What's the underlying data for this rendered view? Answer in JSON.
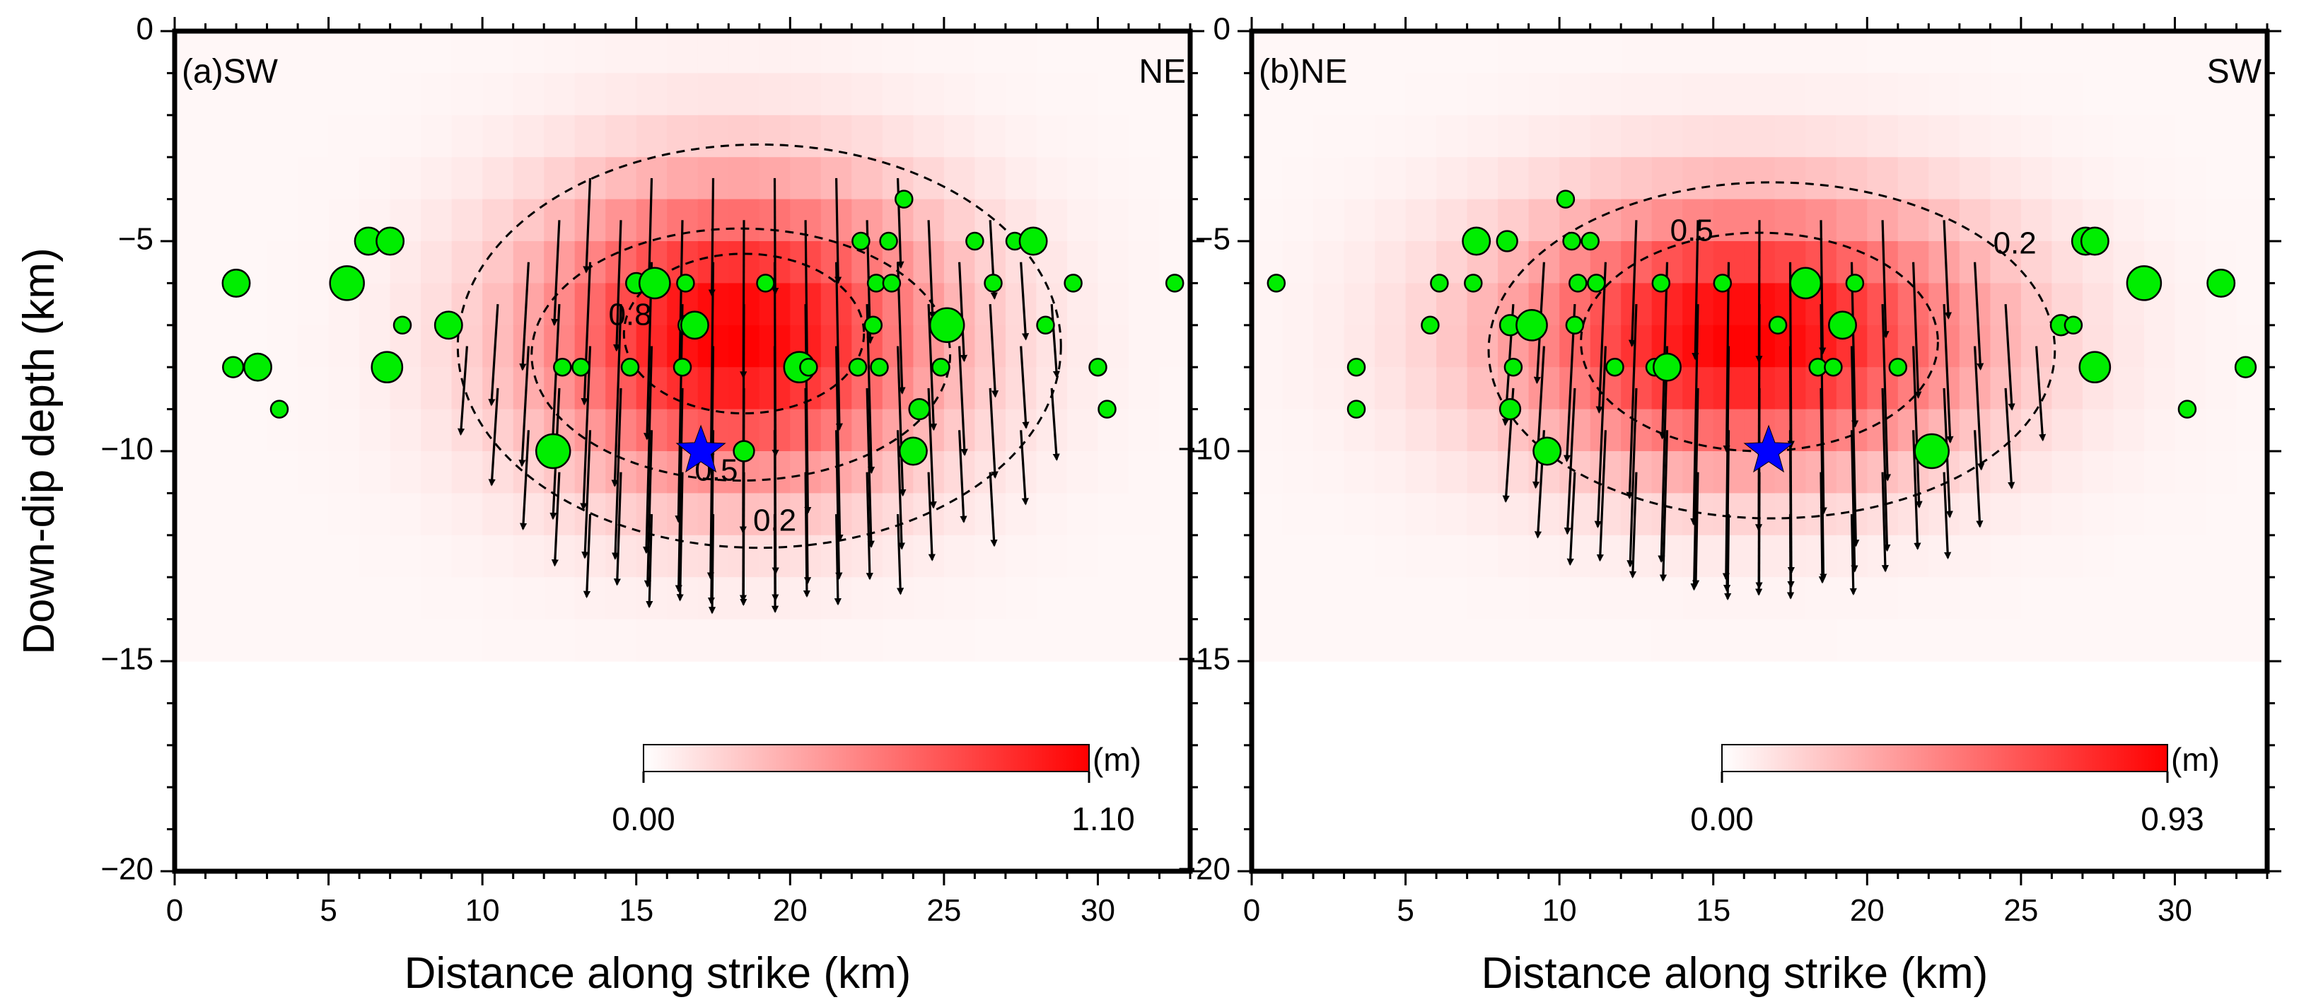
{
  "figure": {
    "ylabel": "Down-dip depth (km)",
    "y_tick_labels": [
      "0",
      "−5",
      "−10",
      "−15",
      "−20"
    ],
    "x_tick_labels": [
      "0",
      "5",
      "10",
      "15",
      "20",
      "25",
      "30"
    ],
    "colors": {
      "slip_max": "#ff0000",
      "slip_min": "#ffffff",
      "event": "#00ee00",
      "hypocenter": "#0000ff"
    }
  },
  "chart_data": [
    {
      "type": "heatmap",
      "panel_label": "(a)SW",
      "right_label": "NE",
      "xlabel": "Distance along strike (km)",
      "ylabel": "Down-dip depth (km)",
      "xlim": [
        0,
        33
      ],
      "ylim": [
        -20,
        0
      ],
      "x_ticks": [
        0,
        5,
        10,
        15,
        20,
        25,
        30
      ],
      "y_ticks": [
        0,
        -5,
        -10,
        -15,
        -20
      ],
      "slip_peak_m": 1.1,
      "slip_center_km": [
        18.2,
        -7.2
      ],
      "slip_spread_km": [
        4.6,
        2.5
      ],
      "colorbar": {
        "unit": "(m)",
        "min_label": "0.00",
        "max_label": "1.10",
        "min": 0.0,
        "max": 1.1
      },
      "contours": [
        {
          "label": "0.2",
          "center": [
            19.0,
            -7.5
          ],
          "radii": [
            9.8,
            4.8
          ],
          "label_pos": [
            19.5,
            -11.7
          ]
        },
        {
          "label": "0.5",
          "center": [
            18.4,
            -7.7
          ],
          "radii": [
            6.8,
            3.0
          ],
          "label_pos": [
            17.6,
            -10.5
          ]
        },
        {
          "label": "0.8",
          "center": [
            18.5,
            -7.2
          ],
          "radii": [
            3.9,
            1.9
          ],
          "label_pos": [
            14.8,
            -6.8
          ]
        }
      ],
      "hypocenter": [
        17.1,
        -10.0
      ],
      "events": [
        [
          2.0,
          -6.0,
          1.6
        ],
        [
          1.9,
          -8.0,
          1.2
        ],
        [
          2.7,
          -8.0,
          1.6
        ],
        [
          3.4,
          -9.0,
          1.0
        ],
        [
          5.6,
          -6.0,
          2.0
        ],
        [
          6.3,
          -5.0,
          1.6
        ],
        [
          7.0,
          -5.0,
          1.6
        ],
        [
          7.4,
          -7.0,
          1.0
        ],
        [
          6.9,
          -8.0,
          1.8
        ],
        [
          8.9,
          -7.0,
          1.6
        ],
        [
          12.3,
          -10.0,
          2.0
        ],
        [
          12.6,
          -8.0,
          1.0
        ],
        [
          13.2,
          -8.0,
          1.0
        ],
        [
          14.8,
          -8.0,
          1.0
        ],
        [
          15.0,
          -6.0,
          1.2
        ],
        [
          15.6,
          -6.0,
          1.8
        ],
        [
          16.6,
          -6.0,
          1.0
        ],
        [
          16.7,
          -7.0,
          1.2
        ],
        [
          16.9,
          -7.0,
          1.6
        ],
        [
          16.5,
          -8.0,
          1.0
        ],
        [
          18.5,
          -10.0,
          1.2
        ],
        [
          19.2,
          -6.0,
          1.0
        ],
        [
          20.3,
          -8.0,
          1.8
        ],
        [
          20.6,
          -8.0,
          1.0
        ],
        [
          22.2,
          -8.0,
          1.0
        ],
        [
          22.3,
          -5.0,
          1.0
        ],
        [
          23.2,
          -5.0,
          1.0
        ],
        [
          22.8,
          -6.0,
          1.0
        ],
        [
          23.3,
          -6.0,
          1.0
        ],
        [
          23.7,
          -4.0,
          1.0
        ],
        [
          22.7,
          -7.0,
          1.0
        ],
        [
          22.9,
          -8.0,
          1.0
        ],
        [
          24.0,
          -10.0,
          1.6
        ],
        [
          24.2,
          -9.0,
          1.2
        ],
        [
          25.1,
          -7.0,
          2.0
        ],
        [
          24.9,
          -8.0,
          1.0
        ],
        [
          26.0,
          -5.0,
          1.0
        ],
        [
          26.6,
          -6.0,
          1.0
        ],
        [
          27.3,
          -5.0,
          1.0
        ],
        [
          27.9,
          -5.0,
          1.6
        ],
        [
          28.3,
          -7.0,
          1.0
        ],
        [
          29.2,
          -6.0,
          1.0
        ],
        [
          30.0,
          -8.0,
          1.0
        ],
        [
          30.3,
          -9.0,
          1.0
        ],
        [
          32.5,
          -6.0,
          1.0
        ]
      ]
    },
    {
      "type": "heatmap",
      "panel_label": "(b)NE",
      "right_label": "SW",
      "xlabel": "Distance along strike (km)",
      "ylabel": "Down-dip depth (km)",
      "xlim": [
        0,
        33
      ],
      "ylim": [
        -20,
        0
      ],
      "x_ticks": [
        0,
        5,
        10,
        15,
        20,
        25,
        30
      ],
      "y_ticks": [
        0,
        -5,
        -10,
        -15,
        -20
      ],
      "slip_peak_m": 0.93,
      "slip_center_km": [
        16.0,
        -7.2
      ],
      "slip_spread_km": [
        5.3,
        2.2
      ],
      "colorbar": {
        "unit": "(m)",
        "min_label": "0.00",
        "max_label": "0.93",
        "min": 0.0,
        "max": 0.93
      },
      "contours": [
        {
          "label": "0.2",
          "center": [
            16.9,
            -7.6
          ],
          "radii": [
            9.2,
            4.0
          ],
          "label_pos": [
            24.8,
            -5.1
          ]
        },
        {
          "label": "0.5",
          "center": [
            16.5,
            -7.4
          ],
          "radii": [
            5.8,
            2.6
          ],
          "label_pos": [
            14.3,
            -4.8
          ]
        }
      ],
      "hypocenter": [
        16.8,
        -10.0
      ],
      "events": [
        [
          0.8,
          -6.0,
          1.0
        ],
        [
          3.4,
          -8.0,
          1.0
        ],
        [
          3.4,
          -9.0,
          1.0
        ],
        [
          5.8,
          -7.0,
          1.0
        ],
        [
          6.1,
          -6.0,
          1.0
        ],
        [
          7.2,
          -6.0,
          1.0
        ],
        [
          7.3,
          -5.0,
          1.6
        ],
        [
          8.3,
          -5.0,
          1.2
        ],
        [
          8.4,
          -7.0,
          1.2
        ],
        [
          8.5,
          -8.0,
          1.0
        ],
        [
          8.4,
          -9.0,
          1.2
        ],
        [
          9.1,
          -7.0,
          1.8
        ],
        [
          9.6,
          -10.0,
          1.6
        ],
        [
          10.2,
          -4.0,
          1.0
        ],
        [
          10.4,
          -5.0,
          1.0
        ],
        [
          10.6,
          -6.0,
          1.0
        ],
        [
          10.5,
          -7.0,
          1.0
        ],
        [
          11.0,
          -5.0,
          1.0
        ],
        [
          11.2,
          -6.0,
          1.0
        ],
        [
          11.8,
          -8.0,
          1.0
        ],
        [
          13.1,
          -8.0,
          1.0
        ],
        [
          13.5,
          -8.0,
          1.6
        ],
        [
          13.3,
          -6.0,
          1.0
        ],
        [
          15.3,
          -6.0,
          1.0
        ],
        [
          17.1,
          -7.0,
          1.0
        ],
        [
          18.0,
          -6.0,
          1.8
        ],
        [
          18.4,
          -8.0,
          1.0
        ],
        [
          19.2,
          -7.0,
          1.6
        ],
        [
          19.6,
          -6.0,
          1.0
        ],
        [
          18.9,
          -8.0,
          1.0
        ],
        [
          21.0,
          -8.0,
          1.0
        ],
        [
          22.1,
          -10.0,
          2.0
        ],
        [
          26.3,
          -7.0,
          1.2
        ],
        [
          26.7,
          -7.0,
          1.0
        ],
        [
          27.1,
          -5.0,
          1.6
        ],
        [
          27.4,
          -5.0,
          1.6
        ],
        [
          27.4,
          -8.0,
          1.8
        ],
        [
          29.0,
          -6.0,
          2.0
        ],
        [
          30.4,
          -9.0,
          1.0
        ],
        [
          31.5,
          -6.0,
          1.6
        ],
        [
          32.3,
          -8.0,
          1.2
        ]
      ]
    }
  ]
}
